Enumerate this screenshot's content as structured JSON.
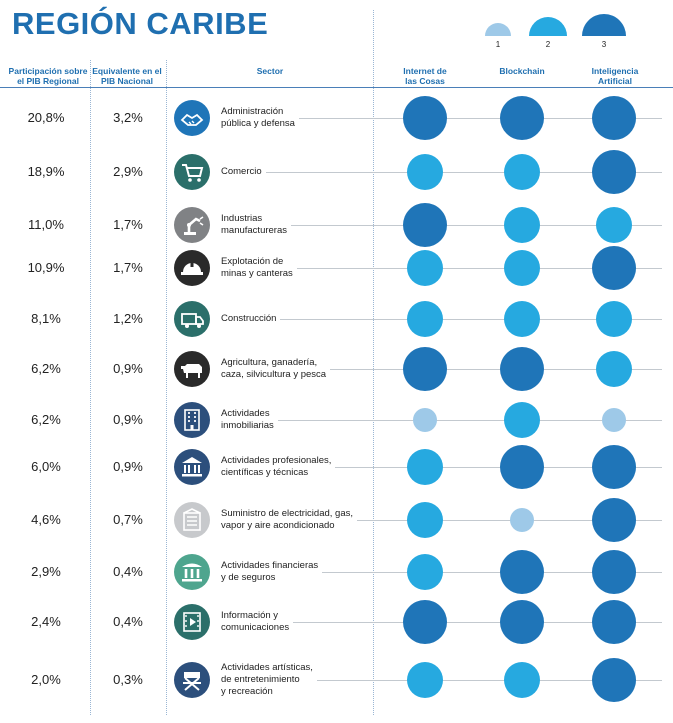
{
  "title": "REGIÓN CARIBE",
  "colors": {
    "level_1": "#9ec9e8",
    "level_2": "#26a9e0",
    "level_3": "#1f75b8",
    "title": "#1f6fb0",
    "icon_teal": "#2b6f6a",
    "icon_gray": "#808285",
    "icon_dark": "#2a2a2a",
    "icon_navy": "#2c4f7c",
    "icon_lightgray": "#c7c9cc",
    "icon_green": "#4ea58e"
  },
  "legend": {
    "levels": [
      "1",
      "2",
      "3"
    ]
  },
  "headers": {
    "regional": "Participación sobre\nel PIB Regional",
    "national": "Equivalente en el\nPIB Nacional",
    "sector": "Sector",
    "iot": "Internet de\nlas Cosas",
    "blockchain": "Blockchain",
    "ai": "Inteligencia\nArtificial"
  },
  "chart_data": {
    "type": "table",
    "title": "REGIÓN CARIBE",
    "columns": [
      "Participación sobre el PIB Regional",
      "Equivalente en el PIB Nacional",
      "Sector",
      "Internet de las Cosas",
      "Blockchain",
      "Inteligencia Artificial"
    ],
    "rows": [
      {
        "sector": "Administración\npública y defensa",
        "regional": "20,8%",
        "national": "3,2%",
        "iot": 3,
        "blockchain": 3,
        "ai": 3,
        "icon": "handshake-icon",
        "icon_color": "#1f75b8"
      },
      {
        "sector": "Comercio",
        "regional": "18,9%",
        "national": "2,9%",
        "iot": 2,
        "blockchain": 2,
        "ai": 3,
        "icon": "shopping-cart-icon",
        "icon_color": "#2b6f6a"
      },
      {
        "sector": "Industrias\nmanufactureras",
        "regional": "11,0%",
        "national": "1,7%",
        "iot": 3,
        "blockchain": 2,
        "ai": 2,
        "icon": "robot-arm-icon",
        "icon_color": "#808285"
      },
      {
        "sector": "Explotación de\nminas y canteras",
        "regional": "10,9%",
        "national": "1,7%",
        "iot": 2,
        "blockchain": 2,
        "ai": 3,
        "icon": "hard-hat-icon",
        "icon_color": "#2a2a2a"
      },
      {
        "sector": "Construcción",
        "regional": "8,1%",
        "national": "1,2%",
        "iot": 2,
        "blockchain": 2,
        "ai": 2,
        "icon": "truck-icon",
        "icon_color": "#2b6f6a"
      },
      {
        "sector": "Agricultura, ganadería,\ncaza, silvicultura y pesca",
        "regional": "6,2%",
        "national": "0,9%",
        "iot": 3,
        "blockchain": 3,
        "ai": 2,
        "icon": "cow-icon",
        "icon_color": "#2a2a2a"
      },
      {
        "sector": "Actividades\ninmobiliarias",
        "regional": "6,2%",
        "national": "0,9%",
        "iot": 1,
        "blockchain": 2,
        "ai": 1,
        "icon": "building-icon",
        "icon_color": "#2c4f7c"
      },
      {
        "sector": "Actividades profesionales,\ncientíficas y técnicas",
        "regional": "6,0%",
        "national": "0,9%",
        "iot": 2,
        "blockchain": 3,
        "ai": 3,
        "icon": "institution-icon",
        "icon_color": "#2c4f7c"
      },
      {
        "sector": "Suministro de electricidad, gas,\nvapor y aire acondicionado",
        "regional": "4,6%",
        "national": "0,7%",
        "iot": 2,
        "blockchain": 1,
        "ai": 3,
        "icon": "utility-building-icon",
        "icon_color": "#c7c9cc"
      },
      {
        "sector": "Actividades financieras\ny de seguros",
        "regional": "2,9%",
        "national": "0,4%",
        "iot": 2,
        "blockchain": 3,
        "ai": 3,
        "icon": "columns-bank-icon",
        "icon_color": "#4ea58e"
      },
      {
        "sector": "Información y\ncomunicaciones",
        "regional": "2,4%",
        "national": "0,4%",
        "iot": 3,
        "blockchain": 3,
        "ai": 3,
        "icon": "video-play-icon",
        "icon_color": "#2b6f6a"
      },
      {
        "sector": "Actividades artísticas,\nde entretenimiento\ny recreación",
        "regional": "2,0%",
        "national": "0,3%",
        "iot": 2,
        "blockchain": 2,
        "ai": 3,
        "icon": "directors-chair-icon",
        "icon_color": "#2c4f7c"
      }
    ]
  }
}
